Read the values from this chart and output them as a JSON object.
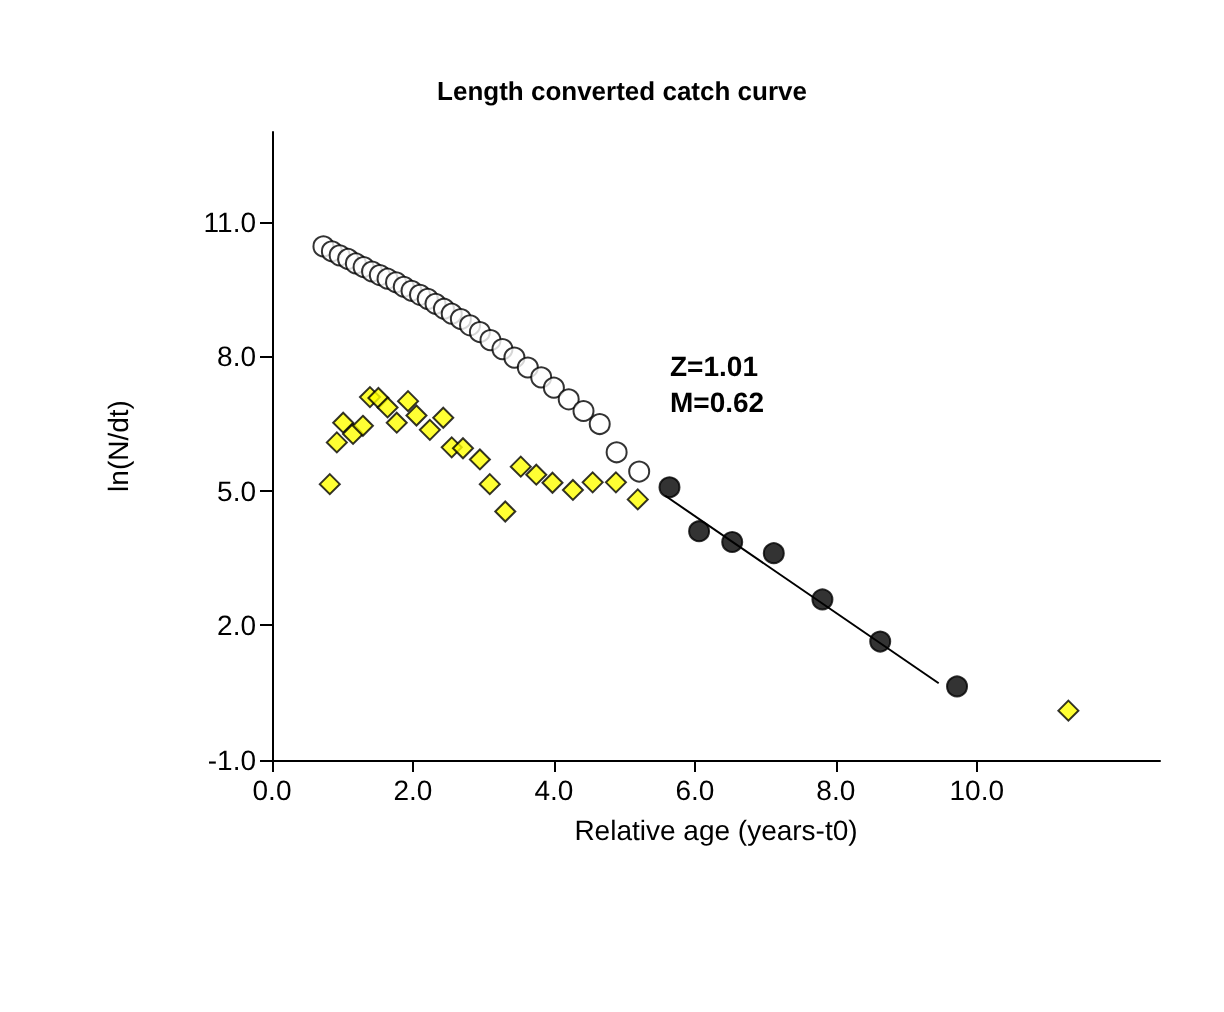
{
  "chart_data": {
    "type": "scatter",
    "title": "Length converted catch curve",
    "xlabel": "Relative age (years-t0)",
    "ylabel": "ln(N/dt)",
    "annotations": [
      "Z=1.01",
      "M=0.62"
    ],
    "xlim": [
      0,
      12.6
    ],
    "xticks": [
      {
        "value": 0,
        "label": "0.0"
      },
      {
        "value": 2,
        "label": "2.0"
      },
      {
        "value": 4,
        "label": "4.0"
      },
      {
        "value": 6,
        "label": "6.0"
      },
      {
        "value": 8,
        "label": "8.0"
      },
      {
        "value": 10,
        "label": "10.0"
      }
    ],
    "ylim": [
      -1,
      13
    ],
    "yticks": [
      {
        "value": -1,
        "label": "-1.0"
      },
      {
        "value": 2,
        "label": "2.0"
      },
      {
        "value": 5,
        "label": "5.0"
      },
      {
        "value": 8,
        "label": "8.0"
      },
      {
        "value": 11,
        "label": "11.0"
      }
    ],
    "grid": false,
    "series": [
      {
        "marker": "circle",
        "color": "#ffffff",
        "x": [
          0.73,
          0.85,
          0.96,
          1.08,
          1.19,
          1.3,
          1.42,
          1.53,
          1.64,
          1.76,
          1.87,
          1.98,
          2.1,
          2.21,
          2.32,
          2.44,
          2.55,
          2.68,
          2.81,
          2.95,
          3.1,
          3.27,
          3.44,
          3.63,
          3.82,
          4.0,
          4.21,
          4.42,
          4.65,
          4.89,
          5.21
        ],
        "values": [
          10.45,
          10.34,
          10.25,
          10.17,
          10.07,
          9.99,
          9.89,
          9.81,
          9.73,
          9.65,
          9.55,
          9.46,
          9.37,
          9.28,
          9.17,
          9.06,
          8.95,
          8.83,
          8.69,
          8.54,
          8.36,
          8.16,
          7.97,
          7.75,
          7.53,
          7.3,
          7.04,
          6.78,
          6.49,
          5.86,
          5.43
        ]
      },
      {
        "marker": "diamond",
        "color": "#ffff00",
        "x": [
          0.82,
          0.92,
          1.01,
          1.15,
          1.29,
          1.39,
          1.51,
          1.64,
          1.77,
          1.93,
          2.05,
          2.24,
          2.43,
          2.55,
          2.71,
          2.95,
          3.09,
          3.31,
          3.53,
          3.75,
          3.98,
          4.27,
          4.55,
          4.88,
          5.19,
          11.3
        ],
        "values": [
          5.15,
          6.08,
          6.52,
          6.27,
          6.45,
          7.09,
          7.07,
          6.86,
          6.52,
          7.0,
          6.68,
          6.36,
          6.63,
          5.97,
          5.95,
          5.7,
          5.15,
          4.54,
          5.54,
          5.36,
          5.18,
          5.02,
          5.19,
          5.19,
          4.81,
          0.1
        ]
      },
      {
        "marker": "circle",
        "color": "#000000",
        "x": [
          5.64,
          6.06,
          6.53,
          7.12,
          7.81,
          8.63,
          9.72
        ],
        "values": [
          5.08,
          4.1,
          3.86,
          3.61,
          2.58,
          1.64,
          0.64
        ]
      },
      {
        "type": "line",
        "marker": "none",
        "line_style": "solid",
        "color": "#000000",
        "x": [
          5.58,
          9.46
        ],
        "values": [
          4.89,
          0.71
        ]
      }
    ]
  }
}
